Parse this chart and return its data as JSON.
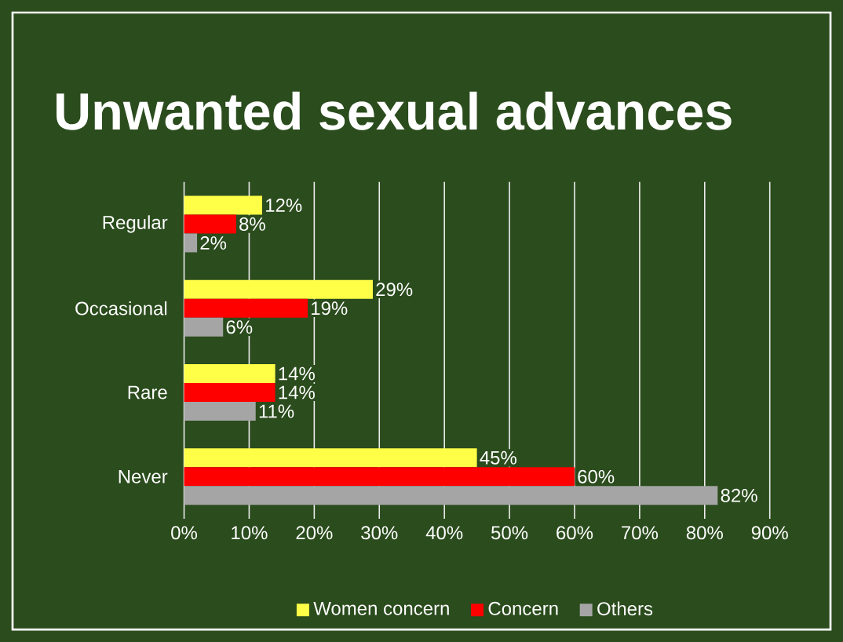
{
  "chart_data": {
    "type": "bar",
    "orientation": "horizontal",
    "title": "Unwanted sexual advances",
    "categories": [
      "Regular",
      "Occasional",
      "Rare",
      "Never"
    ],
    "series": [
      {
        "name": "Women concern",
        "color": "#ffff47",
        "values": [
          12,
          29,
          14,
          45
        ],
        "value_labels": [
          "12%",
          "29%",
          "14%",
          "45%"
        ]
      },
      {
        "name": "Concern",
        "color": "#ff0000",
        "values": [
          8,
          19,
          14,
          60
        ],
        "value_labels": [
          "8%",
          "19%",
          "14%",
          "60%"
        ]
      },
      {
        "name": "Others",
        "color": "#a5a5a5",
        "values": [
          2,
          6,
          11,
          82
        ],
        "value_labels": [
          "2%",
          "6%",
          "11%",
          "82%"
        ]
      }
    ],
    "xlim": [
      0,
      90
    ],
    "xticks": [
      {
        "value": 0,
        "label": "0%"
      },
      {
        "value": 10,
        "label": "10%"
      },
      {
        "value": 20,
        "label": "20%"
      },
      {
        "value": 30,
        "label": "30%"
      },
      {
        "value": 40,
        "label": "40%"
      },
      {
        "value": 50,
        "label": "50%"
      },
      {
        "value": 60,
        "label": "60%"
      },
      {
        "value": 70,
        "label": "70%"
      },
      {
        "value": 80,
        "label": "80%"
      },
      {
        "value": 90,
        "label": "90%"
      }
    ],
    "grid": "x",
    "legend": "bottom"
  }
}
